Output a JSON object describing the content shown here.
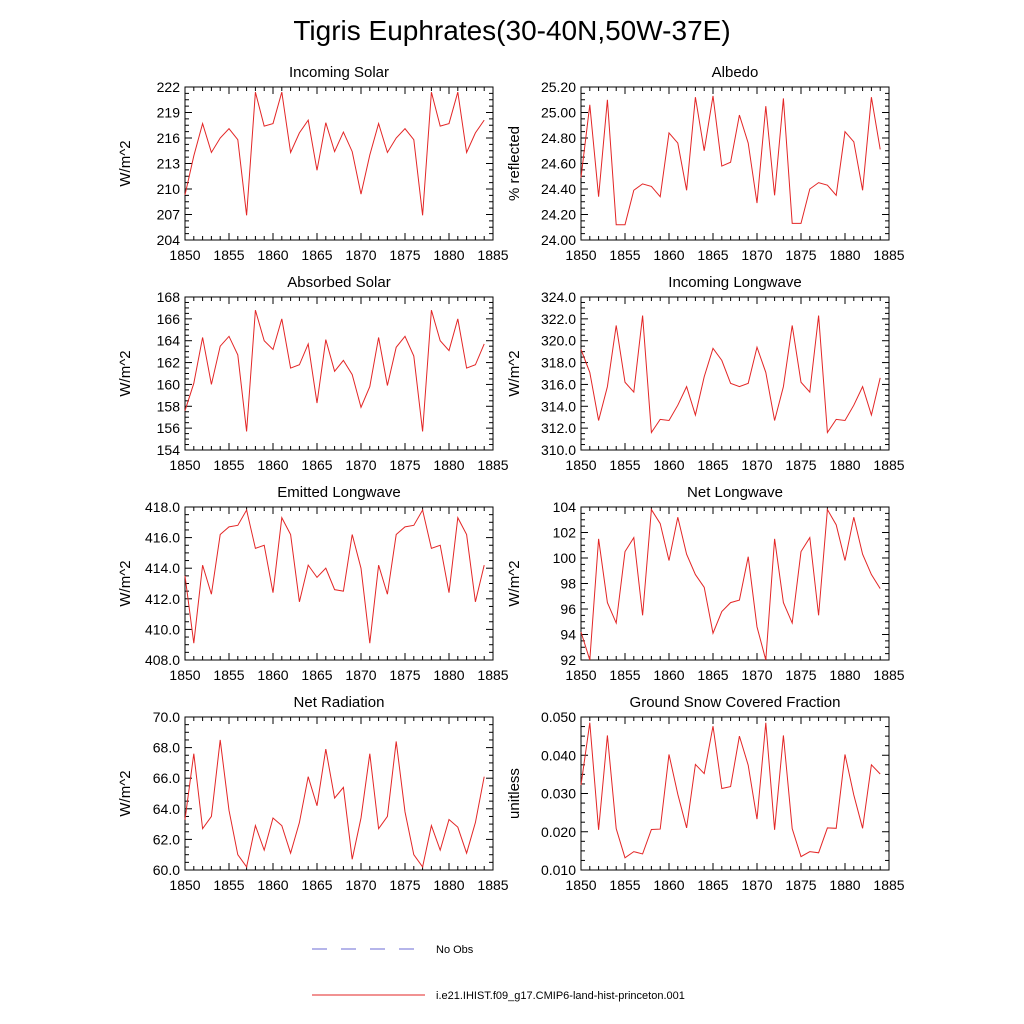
{
  "figure": {
    "title": "Tigris Euphrates(30-40N,50W-37E)"
  },
  "legend": {
    "entries": [
      {
        "label": "No Obs",
        "style": "dashed",
        "color": "#6b6bd6"
      },
      {
        "label": "i.e21.IHIST.f09_g17.CMIP6-land-hist-princeton.001",
        "style": "solid",
        "color": "#e32626"
      }
    ]
  },
  "chart_data": [
    {
      "type": "line",
      "title": "Incoming Solar",
      "ylabel": "W/m^2",
      "xlim": [
        1850,
        1885
      ],
      "ylim": [
        204,
        222
      ],
      "yticks": [
        "204",
        "207",
        "210",
        "213",
        "216",
        "219",
        "222"
      ],
      "xticks": [
        "1850",
        "1855",
        "1860",
        "1865",
        "1870",
        "1875",
        "1880",
        "1885"
      ],
      "series": [
        {
          "color": "#e32626",
          "x": [
            1850,
            1851,
            1852,
            1853,
            1854,
            1855,
            1856,
            1857,
            1858,
            1859,
            1860,
            1861,
            1862,
            1863,
            1864,
            1865,
            1866,
            1867,
            1868,
            1869,
            1870,
            1871,
            1872,
            1873,
            1874,
            1875,
            1876,
            1877,
            1878,
            1879,
            1880,
            1881,
            1882,
            1883,
            1884
          ],
          "values": [
            209.3,
            213.9,
            217.7,
            214.3,
            216.0,
            217.1,
            215.8,
            206.9,
            221.4,
            217.4,
            217.7,
            221.4,
            214.3,
            216.6,
            218.1,
            212.2,
            217.8,
            214.4,
            216.7,
            214.4,
            209.4,
            214.0,
            217.7,
            214.3,
            216.0,
            217.1,
            215.8,
            206.9,
            221.4,
            217.4,
            217.7,
            221.4,
            214.3,
            216.6,
            218.1
          ]
        }
      ]
    },
    {
      "type": "line",
      "title": "Albedo",
      "ylabel": "% reflected",
      "xlim": [
        1850,
        1885
      ],
      "ylim": [
        24.0,
        25.2
      ],
      "yticks": [
        "24.00",
        "24.20",
        "24.40",
        "24.60",
        "24.80",
        "25.00",
        "25.20"
      ],
      "xticks": [
        "1850",
        "1855",
        "1860",
        "1865",
        "1870",
        "1875",
        "1880",
        "1885"
      ],
      "series": [
        {
          "color": "#e32626",
          "x": [
            1850,
            1851,
            1852,
            1853,
            1854,
            1855,
            1856,
            1857,
            1858,
            1859,
            1860,
            1861,
            1862,
            1863,
            1864,
            1865,
            1866,
            1867,
            1868,
            1869,
            1870,
            1871,
            1872,
            1873,
            1874,
            1875,
            1876,
            1877,
            1878,
            1879,
            1880,
            1881,
            1882,
            1883,
            1884
          ],
          "values": [
            24.49,
            25.06,
            24.34,
            25.1,
            24.12,
            24.12,
            24.39,
            24.44,
            24.42,
            24.34,
            24.84,
            24.76,
            24.39,
            25.12,
            24.7,
            25.13,
            24.58,
            24.61,
            24.98,
            24.76,
            24.29,
            25.05,
            24.35,
            25.11,
            24.13,
            24.13,
            24.4,
            24.45,
            24.43,
            24.35,
            24.85,
            24.77,
            24.39,
            25.12,
            24.71
          ]
        }
      ]
    },
    {
      "type": "line",
      "title": "Absorbed Solar",
      "ylabel": "W/m^2",
      "xlim": [
        1850,
        1885
      ],
      "ylim": [
        154,
        168
      ],
      "yticks": [
        "154",
        "156",
        "158",
        "160",
        "162",
        "164",
        "166",
        "168"
      ],
      "xticks": [
        "1850",
        "1855",
        "1860",
        "1865",
        "1870",
        "1875",
        "1880",
        "1885"
      ],
      "series": [
        {
          "color": "#e32626",
          "x": [
            1850,
            1851,
            1852,
            1853,
            1854,
            1855,
            1856,
            1857,
            1858,
            1859,
            1860,
            1861,
            1862,
            1863,
            1864,
            1865,
            1866,
            1867,
            1868,
            1869,
            1870,
            1871,
            1872,
            1873,
            1874,
            1875,
            1876,
            1877,
            1878,
            1879,
            1880,
            1881,
            1882,
            1883,
            1884
          ],
          "values": [
            157.6,
            160.1,
            164.3,
            160.0,
            163.5,
            164.4,
            162.7,
            155.7,
            166.8,
            164.0,
            163.2,
            166.0,
            161.5,
            161.8,
            163.7,
            158.3,
            164.1,
            161.2,
            162.2,
            160.9,
            157.9,
            159.8,
            164.3,
            159.9,
            163.4,
            164.4,
            162.6,
            155.7,
            166.8,
            164.0,
            163.1,
            166.0,
            161.5,
            161.8,
            163.7
          ]
        }
      ]
    },
    {
      "type": "line",
      "title": "Incoming Longwave",
      "ylabel": "W/m^2",
      "xlim": [
        1850,
        1885
      ],
      "ylim": [
        310.0,
        324.0
      ],
      "yticks": [
        "310.0",
        "312.0",
        "314.0",
        "316.0",
        "318.0",
        "320.0",
        "322.0",
        "324.0"
      ],
      "xticks": [
        "1850",
        "1855",
        "1860",
        "1865",
        "1870",
        "1875",
        "1880",
        "1885"
      ],
      "series": [
        {
          "color": "#e32626",
          "x": [
            1850,
            1851,
            1852,
            1853,
            1854,
            1855,
            1856,
            1857,
            1858,
            1859,
            1860,
            1861,
            1862,
            1863,
            1864,
            1865,
            1866,
            1867,
            1868,
            1869,
            1870,
            1871,
            1872,
            1873,
            1874,
            1875,
            1876,
            1877,
            1878,
            1879,
            1880,
            1881,
            1882,
            1883,
            1884
          ],
          "values": [
            319.2,
            317.1,
            312.7,
            315.8,
            321.4,
            316.2,
            315.3,
            322.3,
            311.6,
            312.8,
            312.7,
            314.1,
            315.8,
            313.2,
            316.7,
            319.3,
            318.2,
            316.1,
            315.8,
            316.1,
            319.4,
            317.1,
            312.7,
            315.8,
            321.4,
            316.2,
            315.3,
            322.3,
            311.6,
            312.8,
            312.7,
            314.1,
            315.8,
            313.2,
            316.6
          ]
        }
      ]
    },
    {
      "type": "line",
      "title": "Emitted Longwave",
      "ylabel": "W/m^2",
      "xlim": [
        1850,
        1885
      ],
      "ylim": [
        408.0,
        418.0
      ],
      "yticks": [
        "408.0",
        "410.0",
        "412.0",
        "414.0",
        "416.0",
        "418.0"
      ],
      "xticks": [
        "1850",
        "1855",
        "1860",
        "1865",
        "1870",
        "1875",
        "1880",
        "1885"
      ],
      "series": [
        {
          "color": "#e32626",
          "x": [
            1850,
            1851,
            1852,
            1853,
            1854,
            1855,
            1856,
            1857,
            1858,
            1859,
            1860,
            1861,
            1862,
            1863,
            1864,
            1865,
            1866,
            1867,
            1868,
            1869,
            1870,
            1871,
            1872,
            1873,
            1874,
            1875,
            1876,
            1877,
            1878,
            1879,
            1880,
            1881,
            1882,
            1883,
            1884
          ],
          "values": [
            413.5,
            409.1,
            414.2,
            412.3,
            416.2,
            416.7,
            416.8,
            417.8,
            415.3,
            415.5,
            412.4,
            417.3,
            416.2,
            411.8,
            414.2,
            413.4,
            414.0,
            412.6,
            412.5,
            416.2,
            414.0,
            409.1,
            414.2,
            412.3,
            416.2,
            416.7,
            416.8,
            417.8,
            415.3,
            415.5,
            412.4,
            417.3,
            416.2,
            411.8,
            414.2
          ]
        }
      ]
    },
    {
      "type": "line",
      "title": "Net Longwave",
      "ylabel": "W/m^2",
      "xlim": [
        1850,
        1885
      ],
      "ylim": [
        92,
        104
      ],
      "yticks": [
        "92",
        "94",
        "96",
        "98",
        "100",
        "102",
        "104"
      ],
      "xticks": [
        "1850",
        "1855",
        "1860",
        "1865",
        "1870",
        "1875",
        "1880",
        "1885"
      ],
      "series": [
        {
          "color": "#e32626",
          "x": [
            1850,
            1851,
            1852,
            1853,
            1854,
            1855,
            1856,
            1857,
            1858,
            1859,
            1860,
            1861,
            1862,
            1863,
            1864,
            1865,
            1866,
            1867,
            1868,
            1869,
            1870,
            1871,
            1872,
            1873,
            1874,
            1875,
            1876,
            1877,
            1878,
            1879,
            1880,
            1881,
            1882,
            1883,
            1884
          ],
          "values": [
            94.2,
            92.0,
            101.5,
            96.5,
            94.9,
            100.5,
            101.6,
            95.5,
            103.8,
            102.7,
            99.8,
            103.2,
            100.3,
            98.7,
            97.7,
            94.1,
            95.8,
            96.5,
            96.7,
            100.1,
            94.6,
            92.0,
            101.5,
            96.5,
            94.9,
            100.5,
            101.6,
            95.5,
            103.8,
            102.6,
            99.8,
            103.2,
            100.3,
            98.7,
            97.6
          ]
        }
      ]
    },
    {
      "type": "line",
      "title": "Net Radiation",
      "ylabel": "W/m^2",
      "xlim": [
        1850,
        1885
      ],
      "ylim": [
        60.0,
        70.0
      ],
      "yticks": [
        "60.0",
        "62.0",
        "64.0",
        "66.0",
        "68.0",
        "70.0"
      ],
      "xticks": [
        "1850",
        "1855",
        "1860",
        "1865",
        "1870",
        "1875",
        "1880",
        "1885"
      ],
      "series": [
        {
          "color": "#e32626",
          "x": [
            1850,
            1851,
            1852,
            1853,
            1854,
            1855,
            1856,
            1857,
            1858,
            1859,
            1860,
            1861,
            1862,
            1863,
            1864,
            1865,
            1866,
            1867,
            1868,
            1869,
            1870,
            1871,
            1872,
            1873,
            1874,
            1875,
            1876,
            1877,
            1878,
            1879,
            1880,
            1881,
            1882,
            1883,
            1884
          ],
          "values": [
            63.3,
            67.6,
            62.7,
            63.5,
            68.5,
            63.9,
            61.0,
            60.2,
            62.9,
            61.3,
            63.4,
            62.9,
            61.1,
            63.1,
            66.1,
            64.2,
            67.9,
            64.7,
            65.4,
            60.7,
            63.4,
            67.6,
            62.7,
            63.5,
            68.4,
            63.8,
            61.0,
            60.2,
            62.9,
            61.3,
            63.3,
            62.8,
            61.1,
            63.1,
            66.1
          ]
        }
      ]
    },
    {
      "type": "line",
      "title": "Ground Snow Covered Fraction",
      "ylabel": "unitless",
      "xlim": [
        1850,
        1885
      ],
      "ylim": [
        0.01,
        0.05
      ],
      "yticks": [
        "0.010",
        "0.020",
        "0.030",
        "0.040",
        "0.050"
      ],
      "xticks": [
        "1850",
        "1855",
        "1860",
        "1865",
        "1870",
        "1875",
        "1880",
        "1885"
      ],
      "series": [
        {
          "color": "#e32626",
          "x": [
            1850,
            1851,
            1852,
            1853,
            1854,
            1855,
            1856,
            1857,
            1858,
            1859,
            1860,
            1861,
            1862,
            1863,
            1864,
            1865,
            1866,
            1867,
            1868,
            1869,
            1870,
            1871,
            1872,
            1873,
            1874,
            1875,
            1876,
            1877,
            1878,
            1879,
            1880,
            1881,
            1882,
            1883,
            1884
          ],
          "values": [
            0.0322,
            0.0485,
            0.0205,
            0.0452,
            0.0208,
            0.0132,
            0.0148,
            0.0142,
            0.0206,
            0.0207,
            0.0402,
            0.0298,
            0.021,
            0.0376,
            0.0352,
            0.0476,
            0.0313,
            0.0318,
            0.045,
            0.0374,
            0.0233,
            0.0485,
            0.0205,
            0.0452,
            0.0208,
            0.0135,
            0.0148,
            0.0145,
            0.021,
            0.0209,
            0.0402,
            0.0296,
            0.0209,
            0.0375,
            0.0351
          ]
        }
      ]
    }
  ]
}
